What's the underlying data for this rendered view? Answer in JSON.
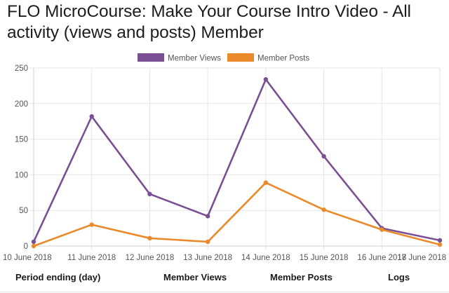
{
  "page": {
    "title": "FLO MicroCourse: Make Your Course Intro Video - All activity (views and posts) Member"
  },
  "colors": {
    "member_views": "#7b4f94",
    "member_posts": "#ea8a2a",
    "grid": "#e6e6e6",
    "axis_text": "#555555"
  },
  "chart_data": {
    "type": "line",
    "x": [
      "10 June 2018",
      "11 June 2018",
      "12 June 2018",
      "13 June 2018",
      "14 June 2018",
      "15 June 2018",
      "16 June 2018",
      "17 June 2018"
    ],
    "series": [
      {
        "name": "Member Views",
        "color": "#7b4f94",
        "values": [
          6,
          182,
          73,
          42,
          234,
          126,
          25,
          8
        ]
      },
      {
        "name": "Member Posts",
        "color": "#ea8a2a",
        "values": [
          0,
          30,
          11,
          6,
          89,
          51,
          23,
          2
        ]
      }
    ],
    "ylim": [
      0,
      250
    ],
    "yticks": [
      0,
      50,
      100,
      150,
      200,
      250
    ],
    "grid": true,
    "legend_position": "top-center"
  },
  "table": {
    "headers": [
      "Period ending (day)",
      "Member Views",
      "Member Posts",
      "Logs"
    ]
  }
}
